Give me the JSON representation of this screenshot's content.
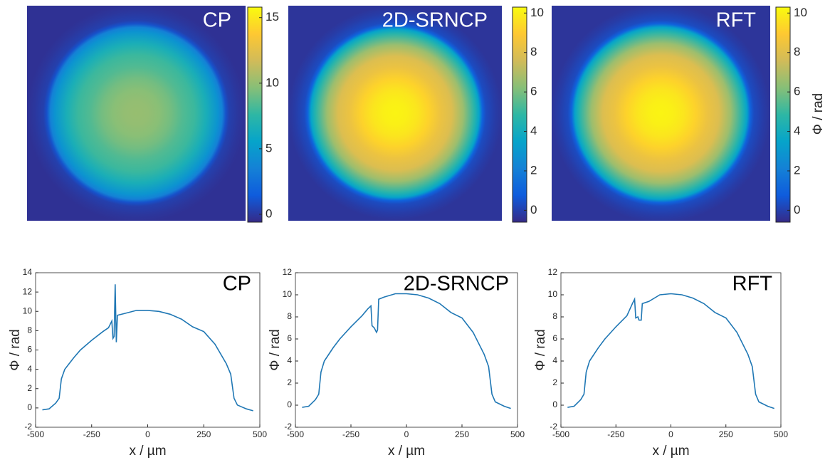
{
  "chart_data": [
    {
      "type": "line",
      "title": "CP",
      "color": "#1f77b4",
      "colormap": [
        "#352a87",
        "#0f5cdd",
        "#1481d6",
        "#06a4ca",
        "#2eb7a4",
        "#87bf77",
        "#d1bb59",
        "#fec832",
        "#f9fb0e"
      ],
      "clim": [
        -0.6,
        15.8
      ],
      "cticks": [
        0,
        5,
        10,
        15
      ],
      "x": [
        -470,
        -440,
        -410,
        -395,
        -385,
        -370,
        -330,
        -300,
        -250,
        -200,
        -175,
        -160,
        -155,
        -150,
        -145,
        -140,
        -135,
        -100,
        -50,
        0,
        50,
        100,
        150,
        200,
        250,
        300,
        350,
        370,
        385,
        400,
        440,
        470
      ],
      "values": [
        -0.2,
        -0.1,
        0.5,
        1,
        3,
        4,
        5.2,
        6,
        7,
        7.9,
        8.3,
        9,
        7.2,
        7.4,
        12.8,
        6.8,
        9.6,
        9.8,
        10.1,
        10.1,
        10,
        9.7,
        9.2,
        8.4,
        7.9,
        6.6,
        4.6,
        3.5,
        1,
        0.3,
        -0.1,
        -0.3
      ],
      "xlim": [
        -500,
        500
      ],
      "ylim": [
        -2,
        14
      ],
      "xticks": [
        -500,
        -250,
        0,
        250,
        500
      ],
      "yticks": [
        -2,
        0,
        2,
        4,
        6,
        8,
        10,
        12,
        14
      ],
      "xlabel": "x / µm",
      "ylabel": "Φ / rad"
    },
    {
      "type": "line",
      "title": "2D-SRNCP",
      "color": "#1f77b4",
      "colormap": [
        "#352a87",
        "#0f5cdd",
        "#1481d6",
        "#06a4ca",
        "#2eb7a4",
        "#87bf77",
        "#d1bb59",
        "#fec832",
        "#f9fb0e"
      ],
      "clim": [
        -0.6,
        10.3
      ],
      "cticks": [
        0,
        2,
        4,
        6,
        8,
        10
      ],
      "x": [
        -470,
        -440,
        -410,
        -395,
        -385,
        -370,
        -330,
        -300,
        -250,
        -200,
        -175,
        -160,
        -155,
        -145,
        -135,
        -130,
        -125,
        -100,
        -50,
        0,
        50,
        100,
        150,
        200,
        250,
        300,
        350,
        370,
        385,
        400,
        440,
        470
      ],
      "values": [
        -0.2,
        -0.1,
        0.5,
        1,
        3,
        4,
        5.2,
        6,
        7.1,
        8.1,
        8.7,
        9,
        7.2,
        7,
        6.6,
        6.8,
        9.6,
        9.8,
        10.1,
        10.1,
        10,
        9.7,
        9.2,
        8.4,
        7.9,
        6.6,
        4.6,
        3.5,
        1,
        0.3,
        -0.1,
        -0.3
      ],
      "xlim": [
        -500,
        500
      ],
      "ylim": [
        -2,
        12
      ],
      "xticks": [
        -500,
        -250,
        0,
        250,
        500
      ],
      "yticks": [
        -2,
        0,
        2,
        4,
        6,
        8,
        10,
        12
      ],
      "xlabel": "x / µm",
      "ylabel": "Φ / rad"
    },
    {
      "type": "line",
      "title": "RFT",
      "color": "#1f77b4",
      "colormap": [
        "#352a87",
        "#0f5cdd",
        "#1481d6",
        "#06a4ca",
        "#2eb7a4",
        "#87bf77",
        "#d1bb59",
        "#fec832",
        "#f9fb0e"
      ],
      "clim": [
        -0.6,
        10.3
      ],
      "cticks": [
        0,
        2,
        4,
        6,
        8,
        10
      ],
      "colorbar_label": "Φ / rad",
      "x": [
        -470,
        -440,
        -410,
        -395,
        -385,
        -370,
        -330,
        -300,
        -250,
        -200,
        -175,
        -165,
        -160,
        -150,
        -145,
        -135,
        -130,
        -100,
        -50,
        0,
        50,
        100,
        150,
        200,
        250,
        300,
        350,
        370,
        385,
        400,
        440,
        470
      ],
      "values": [
        -0.2,
        -0.1,
        0.5,
        1,
        3,
        4,
        5.2,
        6,
        7.1,
        8.1,
        9.2,
        9.6,
        7.9,
        8,
        7.7,
        7.7,
        9.2,
        9.4,
        10,
        10.1,
        10,
        9.7,
        9.2,
        8.4,
        7.9,
        6.6,
        4.6,
        3.5,
        1,
        0.3,
        -0.1,
        -0.3
      ],
      "xlim": [
        -500,
        500
      ],
      "ylim": [
        -2,
        12
      ],
      "xticks": [
        -500,
        -250,
        0,
        250,
        500
      ],
      "yticks": [
        -2,
        0,
        2,
        4,
        6,
        8,
        10,
        12
      ],
      "xlabel": "x / µm",
      "ylabel": "Φ / rad"
    }
  ]
}
